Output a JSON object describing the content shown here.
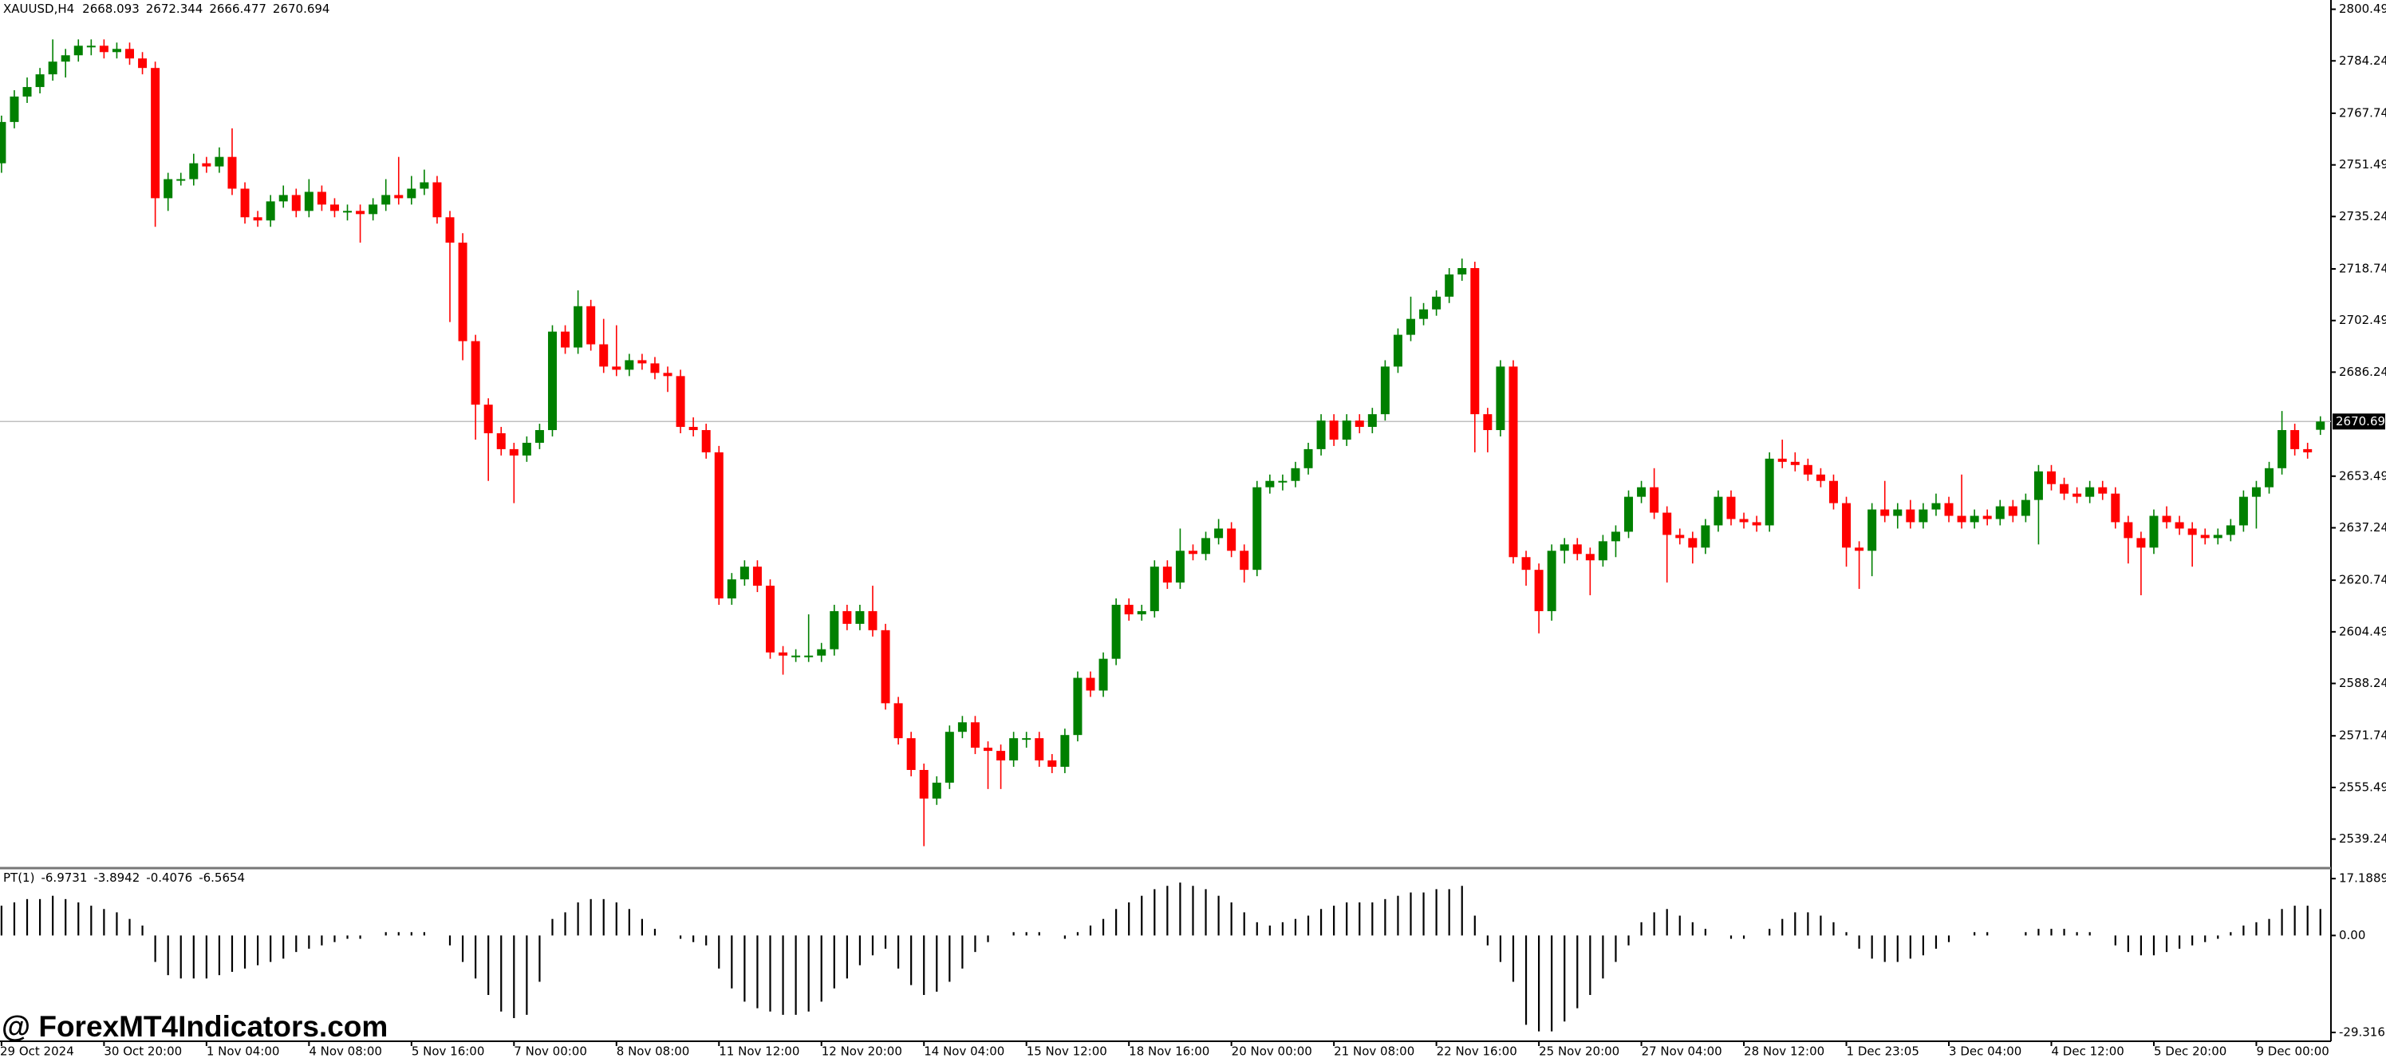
{
  "chart_data": {
    "type": "candlestick",
    "symbol": "XAUUSD,H4",
    "watermark": "@ ForexMT4Indicators.com",
    "up_color": "#008000",
    "down_color": "#ff0000",
    "current_price_line": true,
    "categories": [
      "29 Oct 2024",
      null,
      null,
      null,
      null,
      null,
      null,
      null,
      "30 Oct 20:00",
      null,
      null,
      null,
      null,
      null,
      null,
      null,
      "1 Nov 04:00",
      null,
      null,
      null,
      null,
      null,
      null,
      null,
      "4 Nov 08:00",
      null,
      null,
      null,
      null,
      null,
      null,
      null,
      "5 Nov 16:00",
      null,
      null,
      null,
      null,
      null,
      null,
      null,
      "7 Nov 00:00",
      null,
      null,
      null,
      null,
      null,
      null,
      null,
      "8 Nov 08:00",
      null,
      null,
      null,
      null,
      null,
      null,
      null,
      "11 Nov 12:00",
      null,
      null,
      null,
      null,
      null,
      null,
      null,
      "12 Nov 20:00",
      null,
      null,
      null,
      null,
      null,
      null,
      null,
      "14 Nov 04:00",
      null,
      null,
      null,
      null,
      null,
      null,
      null,
      "15 Nov 12:00",
      null,
      null,
      null,
      null,
      null,
      null,
      null,
      "18 Nov 16:00",
      null,
      null,
      null,
      null,
      null,
      null,
      null,
      "20 Nov 00:00",
      null,
      null,
      null,
      null,
      null,
      null,
      null,
      "21 Nov 08:00",
      null,
      null,
      null,
      null,
      null,
      null,
      null,
      "22 Nov 16:00",
      null,
      null,
      null,
      null,
      null,
      null,
      null,
      "25 Nov 20:00",
      null,
      null,
      null,
      null,
      null,
      null,
      null,
      "27 Nov 04:00",
      null,
      null,
      null,
      null,
      null,
      null,
      null,
      "28 Nov 12:00",
      null,
      null,
      null,
      null,
      null,
      null,
      null,
      "1 Dec 23:05",
      null,
      null,
      null,
      null,
      null,
      null,
      null,
      "3 Dec 04:00",
      null,
      null,
      null,
      null,
      null,
      null,
      null,
      "4 Dec 12:00",
      null,
      null,
      null,
      null,
      null,
      null,
      null,
      "5 Dec 20:00",
      null,
      null,
      null,
      null,
      null,
      null,
      null,
      "9 Dec 00:00",
      null,
      null,
      null,
      null,
      null
    ],
    "open": [
      2752,
      2765,
      2773,
      2776,
      2780,
      2784,
      2786,
      2789,
      2789,
      2787,
      2788,
      2785,
      2782,
      2741,
      2747,
      2747,
      2752,
      2751,
      2754,
      2744,
      2735,
      2734,
      2740,
      2742,
      2737,
      2743,
      2739,
      2737,
      2737,
      2736,
      2739,
      2742,
      2741,
      2744,
      2746,
      2735,
      2727,
      2696,
      2676,
      2667,
      2662,
      2660,
      2664,
      2668,
      2699,
      2694,
      2707,
      2695,
      2688,
      2687,
      2690,
      2689,
      2686,
      2685,
      2669,
      2668,
      2661,
      2615,
      2621,
      2625,
      2619,
      2598,
      2597,
      2597,
      2597,
      2599,
      2611,
      2607,
      2611,
      2605,
      2582,
      2571,
      2561,
      2552,
      2557,
      2573,
      2576,
      2568,
      2567,
      2564,
      2571,
      2571,
      2564,
      2562,
      2572,
      2590,
      2586,
      2596,
      2613,
      2610,
      2611,
      2625,
      2620,
      2630,
      2629,
      2634,
      2637,
      2630,
      2624,
      2650,
      2652,
      2652,
      2656,
      2662,
      2671,
      2665,
      2671,
      2669,
      2673,
      2688,
      2698,
      2703,
      2706,
      2710,
      2717,
      2719,
      2673,
      2668,
      2688,
      2628,
      2624,
      2611,
      2630,
      2632,
      2629,
      2627,
      2633,
      2636,
      2647,
      2650,
      2642,
      2635,
      2634,
      2631,
      2638,
      2647,
      2640,
      2639,
      2638,
      2659,
      2658,
      2657,
      2654,
      2652,
      2645,
      2631,
      2630,
      2643,
      2641,
      2643,
      2639,
      2643,
      2645,
      2641,
      2639,
      2641,
      2640,
      2644,
      2641,
      2646,
      2655,
      2651,
      2648,
      2647,
      2650,
      2648,
      2639,
      2634,
      2631,
      2641,
      2639,
      2637,
      2635,
      2634,
      2635,
      2638,
      2647,
      2650,
      2656,
      2668,
      2662,
      2668.093
    ],
    "high": [
      2767,
      2775,
      2779,
      2782,
      2791,
      2788,
      2791,
      2791,
      2791,
      2790,
      2790,
      2787,
      2784,
      2749,
      2749,
      2755,
      2754,
      2757,
      2763,
      2746,
      2737,
      2742,
      2745,
      2744,
      2747,
      2745,
      2741,
      2739,
      2739,
      2741,
      2747,
      2754,
      2748,
      2750,
      2748,
      2737,
      2730,
      2698,
      2678,
      2669,
      2664,
      2666,
      2670,
      2701,
      2701,
      2712,
      2709,
      2703,
      2701,
      2692,
      2692,
      2691,
      2688,
      2687,
      2672,
      2670,
      2663,
      2623,
      2627,
      2627,
      2621,
      2600,
      2599,
      2610,
      2601,
      2613,
      2613,
      2613,
      2619,
      2607,
      2584,
      2573,
      2563,
      2559,
      2575,
      2578,
      2578,
      2570,
      2569,
      2573,
      2573,
      2573,
      2566,
      2574,
      2592,
      2592,
      2598,
      2615,
      2615,
      2613,
      2627,
      2627,
      2637,
      2632,
      2636,
      2640,
      2639,
      2632,
      2652,
      2654,
      2654,
      2658,
      2664,
      2673,
      2673,
      2673,
      2673,
      2675,
      2690,
      2700,
      2710,
      2708,
      2712,
      2719,
      2722,
      2721,
      2675,
      2690,
      2690,
      2630,
      2626,
      2632,
      2634,
      2634,
      2631,
      2635,
      2638,
      2649,
      2652,
      2656,
      2644,
      2637,
      2636,
      2640,
      2649,
      2649,
      2642,
      2641,
      2661,
      2665,
      2661,
      2659,
      2656,
      2654,
      2647,
      2633,
      2645,
      2652,
      2645,
      2646,
      2645,
      2648,
      2647,
      2654,
      2643,
      2643,
      2646,
      2646,
      2648,
      2657,
      2657,
      2653,
      2650,
      2652,
      2652,
      2650,
      2641,
      2636,
      2643,
      2644,
      2641,
      2639,
      2637,
      2637,
      2640,
      2649,
      2652,
      2658,
      2674,
      2670,
      2664,
      2672.344
    ],
    "low": [
      2749,
      2763,
      2771,
      2774,
      2778,
      2779,
      2784,
      2786,
      2785,
      2785,
      2783,
      2780,
      2732,
      2737,
      2745,
      2745,
      2749,
      2749,
      2742,
      2733,
      2732,
      2732,
      2738,
      2735,
      2735,
      2737,
      2735,
      2734,
      2727,
      2734,
      2737,
      2739,
      2739,
      2742,
      2733,
      2702,
      2690,
      2665,
      2652,
      2660,
      2645,
      2658,
      2662,
      2666,
      2692,
      2692,
      2693,
      2686,
      2685,
      2685,
      2687,
      2684,
      2680,
      2667,
      2666,
      2659,
      2613,
      2613,
      2619,
      2617,
      2596,
      2591,
      2595,
      2595,
      2595,
      2597,
      2605,
      2605,
      2603,
      2580,
      2569,
      2559,
      2537,
      2550,
      2555,
      2571,
      2566,
      2555,
      2555,
      2562,
      2568,
      2562,
      2560,
      2560,
      2570,
      2584,
      2584,
      2594,
      2608,
      2608,
      2609,
      2618,
      2618,
      2627,
      2627,
      2632,
      2628,
      2620,
      2622,
      2648,
      2649,
      2650,
      2654,
      2660,
      2663,
      2663,
      2667,
      2667,
      2671,
      2686,
      2696,
      2701,
      2704,
      2708,
      2715,
      2661,
      2661,
      2666,
      2626,
      2619,
      2604,
      2608,
      2626,
      2627,
      2616,
      2625,
      2628,
      2634,
      2645,
      2640,
      2620,
      2632,
      2626,
      2629,
      2636,
      2638,
      2637,
      2636,
      2636,
      2656,
      2655,
      2652,
      2650,
      2643,
      2625,
      2618,
      2622,
      2639,
      2637,
      2637,
      2637,
      2641,
      2639,
      2637,
      2637,
      2638,
      2638,
      2639,
      2639,
      2632,
      2649,
      2646,
      2645,
      2645,
      2646,
      2637,
      2626,
      2616,
      2629,
      2637,
      2635,
      2625,
      2632,
      2632,
      2633,
      2636,
      2637,
      2648,
      2654,
      2660,
      2659,
      2666.477
    ],
    "close": [
      2765,
      2773,
      2776,
      2780,
      2784,
      2786,
      2789,
      2789,
      2787,
      2788,
      2785,
      2782,
      2741,
      2747,
      2747,
      2752,
      2751,
      2754,
      2744,
      2735,
      2734,
      2740,
      2742,
      2737,
      2743,
      2739,
      2737,
      2737,
      2736,
      2739,
      2742,
      2741,
      2744,
      2746,
      2735,
      2727,
      2696,
      2676,
      2667,
      2662,
      2660,
      2664,
      2668,
      2699,
      2694,
      2707,
      2695,
      2688,
      2687,
      2690,
      2689,
      2686,
      2685,
      2669,
      2668,
      2661,
      2615,
      2621,
      2625,
      2619,
      2598,
      2597,
      2597,
      2597,
      2599,
      2611,
      2607,
      2611,
      2605,
      2582,
      2571,
      2561,
      2552,
      2557,
      2573,
      2576,
      2568,
      2567,
      2564,
      2571,
      2571,
      2564,
      2562,
      2572,
      2590,
      2586,
      2596,
      2613,
      2610,
      2611,
      2625,
      2620,
      2630,
      2629,
      2634,
      2637,
      2630,
      2624,
      2650,
      2652,
      2652,
      2656,
      2662,
      2671,
      2665,
      2671,
      2669,
      2673,
      2688,
      2698,
      2703,
      2706,
      2710,
      2717,
      2719,
      2673,
      2668,
      2688,
      2628,
      2624,
      2611,
      2630,
      2632,
      2629,
      2627,
      2633,
      2636,
      2647,
      2650,
      2642,
      2635,
      2634,
      2631,
      2638,
      2647,
      2640,
      2639,
      2638,
      2659,
      2658,
      2657,
      2654,
      2652,
      2645,
      2631,
      2630,
      2643,
      2641,
      2643,
      2639,
      2643,
      2645,
      2641,
      2639,
      2641,
      2640,
      2644,
      2641,
      2646,
      2655,
      2651,
      2648,
      2647,
      2650,
      2648,
      2639,
      2634,
      2631,
      2641,
      2639,
      2637,
      2635,
      2634,
      2635,
      2638,
      2647,
      2650,
      2656,
      2668,
      2662,
      2661,
      2670.694
    ],
    "ylim": [
      2530.6,
      2803.4
    ],
    "yticks": [
      {
        "value": 2800.49,
        "label": "2800.490"
      },
      {
        "value": 2784.24,
        "label": "2784.240"
      },
      {
        "value": 2767.74,
        "label": "2767.740"
      },
      {
        "value": 2751.49,
        "label": "2751.490"
      },
      {
        "value": 2735.24,
        "label": "2735.240"
      },
      {
        "value": 2718.74,
        "label": "2718.740"
      },
      {
        "value": 2702.49,
        "label": "2702.490"
      },
      {
        "value": 2686.24,
        "label": "2686.240"
      },
      {
        "value": 2653.49,
        "label": "2653.490"
      },
      {
        "value": 2637.24,
        "label": "2637.240"
      },
      {
        "value": 2620.74,
        "label": "2620.740"
      },
      {
        "value": 2604.49,
        "label": "2604.490"
      },
      {
        "value": 2588.24,
        "label": "2588.240"
      },
      {
        "value": 2571.74,
        "label": "2571.740"
      },
      {
        "value": 2555.49,
        "label": "2555.490"
      },
      {
        "value": 2539.24,
        "label": "2539.240"
      }
    ],
    "indicator": {
      "type": "bar",
      "name": "PT(1)",
      "buffer_values": [
        -6.9731,
        -3.8942,
        -0.4076,
        -6.5654
      ],
      "color": "#000000",
      "values": [
        9,
        10,
        11,
        11,
        12,
        11,
        10,
        9,
        8,
        7,
        5,
        3,
        -8,
        -12,
        -13,
        -13,
        -13,
        -12,
        -11,
        -10,
        -9,
        -8,
        -7,
        -5,
        -4,
        -3,
        -2,
        -1,
        -1,
        0,
        1,
        1,
        1,
        1,
        0,
        -3,
        -8,
        -13,
        -18,
        -23,
        -25,
        -24,
        -14,
        5,
        7,
        10,
        11,
        11,
        10,
        8,
        5,
        2,
        0,
        -1,
        -2,
        -3,
        -10,
        -16,
        -20,
        -22,
        -23,
        -24,
        -24,
        -23,
        -20,
        -16,
        -13,
        -9,
        -6,
        -4,
        -10,
        -15,
        -18,
        -17,
        -14,
        -10,
        -5,
        -2,
        0,
        1,
        1,
        1,
        0,
        -1,
        1,
        3,
        5,
        8,
        10,
        12,
        14,
        15,
        16,
        15,
        14,
        12,
        10,
        7,
        4,
        3,
        4,
        5,
        6,
        8,
        9,
        10,
        10,
        10,
        11,
        12,
        13,
        13,
        14,
        14,
        15,
        6,
        -3,
        -8,
        -14,
        -27,
        -29,
        -29,
        -26,
        -22,
        -18,
        -13,
        -8,
        -3,
        4,
        7,
        8,
        6,
        4,
        2,
        0,
        -1,
        -1,
        0,
        2,
        5,
        7,
        7,
        6,
        4,
        1,
        -4,
        -7,
        -8,
        -8,
        -7,
        -6,
        -4,
        -2,
        0,
        1,
        1,
        0,
        0,
        1,
        2,
        2,
        2,
        1,
        1,
        0,
        -3,
        -5,
        -6,
        -6,
        -5,
        -4,
        -3,
        -2,
        -1,
        1,
        3,
        4,
        5,
        8,
        9,
        9,
        8
      ],
      "ylim": [
        -31.5,
        19.4
      ],
      "yticks": [
        17.1889,
        {
          "value": 0,
          "label": "0.00"
        },
        -29.3167
      ]
    }
  }
}
